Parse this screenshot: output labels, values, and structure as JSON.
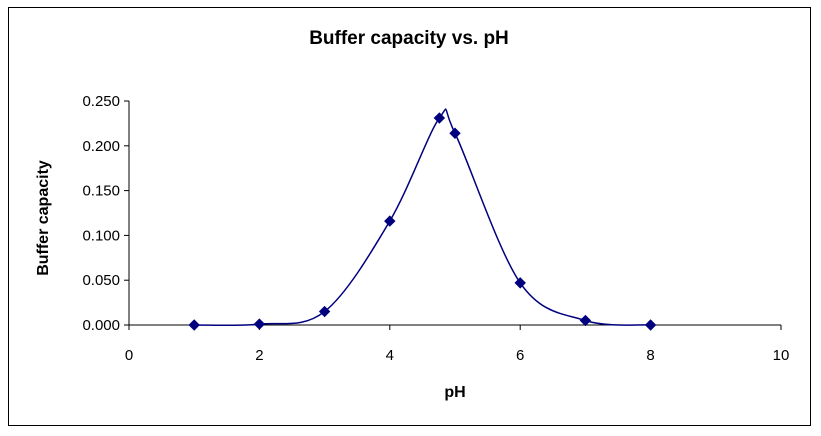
{
  "chart_data": {
    "type": "scatter",
    "title": "Buffer capacity vs. pH",
    "xlabel": "pH",
    "ylabel": "Buffer capacity",
    "xlim": [
      0,
      10
    ],
    "ylim": [
      0,
      0.25
    ],
    "x_ticks": [
      0,
      2,
      4,
      6,
      8,
      10
    ],
    "y_ticks": [
      "0.000",
      "0.050",
      "0.100",
      "0.150",
      "0.200",
      "0.250"
    ],
    "grid": false,
    "legend": "none",
    "smooth_line": true,
    "marker": "diamond",
    "series": [
      {
        "x": [
          1,
          2,
          3,
          4,
          4.76,
          5,
          6,
          7,
          8
        ],
        "y": [
          0.0,
          0.001,
          0.015,
          0.116,
          0.231,
          0.214,
          0.047,
          0.005,
          0.0
        ]
      }
    ],
    "colors": {
      "series": "#00007f",
      "axis": "#000000"
    }
  }
}
